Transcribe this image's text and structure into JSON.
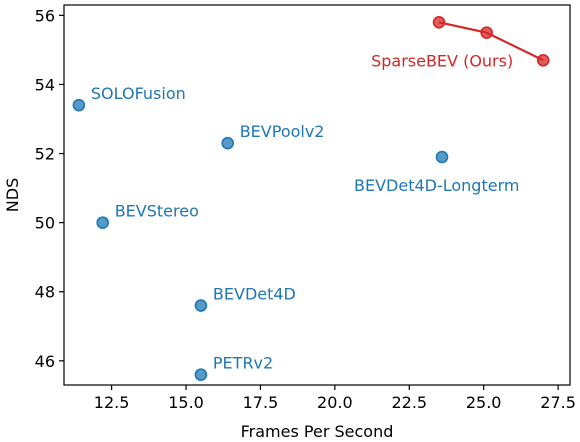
{
  "chart_data": {
    "type": "scatter",
    "title": "",
    "xlabel": "Frames Per Second",
    "ylabel": "NDS",
    "xlim": [
      10.9,
      27.9
    ],
    "ylim": [
      45.3,
      56.3
    ],
    "x_ticks": [
      12.5,
      15.0,
      17.5,
      20.0,
      22.5,
      25.0,
      27.5
    ],
    "x_tick_labels": [
      "12.5",
      "15.0",
      "17.5",
      "20.0",
      "22.5",
      "25.0",
      "27.5"
    ],
    "y_ticks": [
      46,
      48,
      50,
      52,
      54,
      56
    ],
    "y_tick_labels": [
      "46",
      "48",
      "50",
      "52",
      "54",
      "56"
    ],
    "grid": false,
    "legend": "none",
    "colors": {
      "baseline": "#1f77b4",
      "highlight": "#d62728",
      "axis": "#000000"
    },
    "points": [
      {
        "name": "SOLOFusion",
        "x": 11.4,
        "y": 53.4,
        "label_side": "right"
      },
      {
        "name": "BEVPoolv2",
        "x": 16.4,
        "y": 52.3,
        "label_side": "right"
      },
      {
        "name": "BEVDet4D-Longterm",
        "x": 23.6,
        "y": 51.9,
        "label_side": "below"
      },
      {
        "name": "BEVStereo",
        "x": 12.2,
        "y": 50.0,
        "label_side": "right"
      },
      {
        "name": "BEVDet4D",
        "x": 15.5,
        "y": 47.6,
        "label_side": "right"
      },
      {
        "name": "PETRv2",
        "x": 15.5,
        "y": 45.6,
        "label_side": "right"
      }
    ],
    "series": [
      {
        "name": "SparseBEV (Ours)",
        "x": [
          23.5,
          25.1,
          27.0
        ],
        "y": [
          55.8,
          55.5,
          54.7
        ]
      }
    ]
  }
}
